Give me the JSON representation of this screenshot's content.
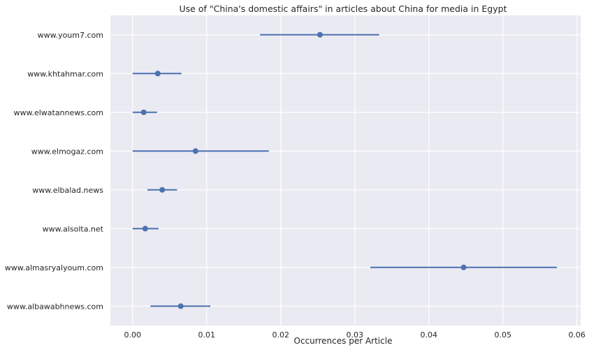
{
  "chart_data": {
    "type": "scatter",
    "title": "Use of \"China's domestic affairs\" in articles about China for media in Egypt",
    "xlabel": "Occurrences per Article",
    "ylabel": "",
    "xlim": [
      -0.003,
      0.0605
    ],
    "xticks": [
      0.0,
      0.01,
      0.02,
      0.03,
      0.04,
      0.05,
      0.06
    ],
    "xtick_labels": [
      "0.00",
      "0.01",
      "0.02",
      "0.03",
      "0.04",
      "0.05",
      "0.06"
    ],
    "grid": true,
    "legend": "none",
    "categories": [
      "www.youm7.com",
      "www.khtahmar.com",
      "www.elwatannews.com",
      "www.elmogaz.com",
      "www.elbalad.news",
      "www.alsolta.net",
      "www.almasryalyoum.com",
      "www.albawabhnews.com"
    ],
    "series": [
      {
        "values": [
          0.0253,
          0.0034,
          0.0015,
          0.0085,
          0.004,
          0.0017,
          0.0447,
          0.0065
        ],
        "ci_low": [
          0.0172,
          0.0,
          0.0,
          0.0,
          0.002,
          0.0,
          0.0321,
          0.0024
        ],
        "ci_high": [
          0.0333,
          0.0066,
          0.0033,
          0.0184,
          0.006,
          0.0035,
          0.0573,
          0.0105
        ]
      }
    ],
    "colors": {
      "marker": "#4c72b0",
      "background": "#eaeaf2",
      "grid": "#ffffff"
    }
  }
}
